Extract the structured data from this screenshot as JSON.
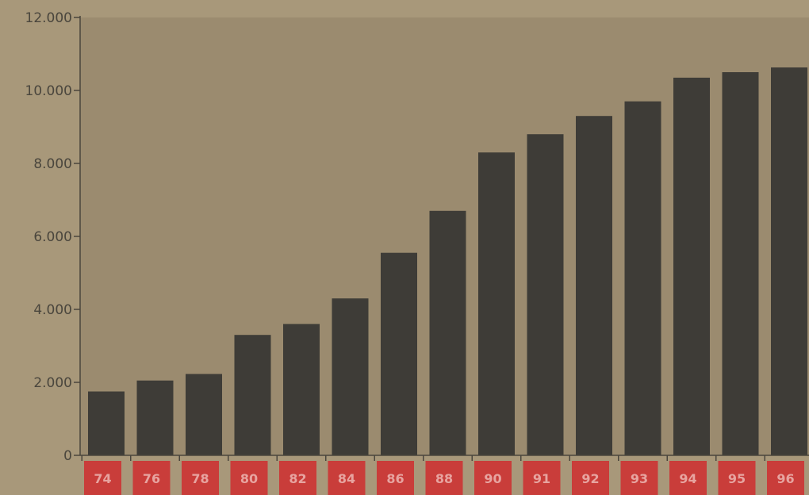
{
  "chart_data": {
    "type": "bar",
    "title": "",
    "xlabel": "",
    "ylabel": "",
    "categories": [
      "74",
      "76",
      "78",
      "80",
      "82",
      "84",
      "86",
      "88",
      "90",
      "91",
      "92",
      "93",
      "94",
      "95",
      "96"
    ],
    "values": [
      1750,
      2050,
      2230,
      3300,
      3600,
      4300,
      5550,
      6700,
      8300,
      8800,
      9300,
      9700,
      10350,
      10500,
      10630
    ],
    "ylim": [
      0,
      12000
    ],
    "yticks": [
      0,
      2000,
      4000,
      6000,
      8000,
      10000,
      12000
    ],
    "ytick_labels": [
      "0",
      "2.000",
      "4.000",
      "6.000",
      "8.000",
      "10.000",
      "12.000"
    ],
    "grid": false,
    "legend": "none",
    "colors": {
      "page_background": "#a8987a",
      "plot_background": "#9b8b6f",
      "bar": "#3e3c37",
      "axis": "#4a463d",
      "category_box": "#c93d3a",
      "category_text": "#e7a4a0"
    }
  }
}
